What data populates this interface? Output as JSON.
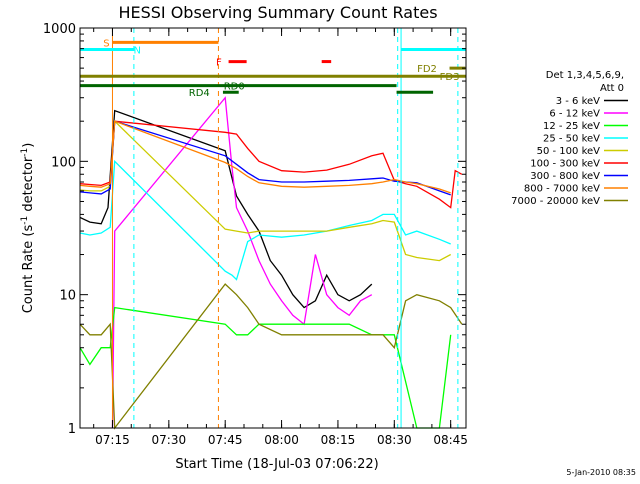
{
  "chart_data": {
    "type": "line",
    "title": "HESSI Observing Summary Count Rates",
    "xlabel": "Start Time (18-Jul-03 07:06:22)",
    "ylabel": "Count Rate (s",
    "ylabel_sup1": "-1",
    "ylabel_mid": " detector",
    "ylabel_sup2": "-1",
    "ylabel_end": ")",
    "yscale": "log",
    "xlim": [
      7.106,
      8.818
    ],
    "ylim": [
      1,
      1000
    ],
    "xticks": [
      {
        "label": "07:15",
        "t": 7.25
      },
      {
        "label": "07:30",
        "t": 7.5
      },
      {
        "label": "07:45",
        "t": 7.75
      },
      {
        "label": "08:00",
        "t": 8.0
      },
      {
        "label": "08:15",
        "t": 8.25
      },
      {
        "label": "08:30",
        "t": 8.5
      },
      {
        "label": "08:45",
        "t": 8.75
      }
    ],
    "yticks": [
      {
        "label": "1",
        "v": 1
      },
      {
        "label": "10",
        "v": 10
      },
      {
        "label": "100",
        "v": 100
      },
      {
        "label": "1000",
        "v": 1000
      }
    ],
    "legend": {
      "placement": "right",
      "header": [
        "Det 1,3,4,5,6,9,",
        "Att 0"
      ],
      "entries": [
        {
          "label": "3 - 6 keV",
          "color": "#000000"
        },
        {
          "label": "6 - 12 keV",
          "color": "#ff00ff"
        },
        {
          "label": "12 - 25 keV",
          "color": "#00ff00"
        },
        {
          "label": "25 - 50 keV",
          "color": "#00ffff"
        },
        {
          "label": "50 - 100 keV",
          "color": "#cccc00"
        },
        {
          "label": "100 - 300 keV",
          "color": "#ff0000"
        },
        {
          "label": "300 - 800 keV",
          "color": "#0000ff"
        },
        {
          "label": "800 - 7000 keV",
          "color": "#ff8000"
        },
        {
          "label": "7000 - 20000 keV",
          "color": "#808000"
        }
      ]
    },
    "flags": [
      {
        "label": "S",
        "color": "#ff8000",
        "y": 780,
        "segs": [
          [
            7.25,
            7.72
          ]
        ],
        "label_t": 7.223
      },
      {
        "label": "N",
        "color": "#00ffff",
        "y": 690,
        "segs": [
          [
            7.106,
            7.345
          ]
        ],
        "label_t": 7.36
      },
      {
        "label": "F",
        "color": "#ff0000",
        "y": 560,
        "segs": [
          [
            7.765,
            7.845
          ],
          [
            8.178,
            8.22
          ]
        ],
        "label_t": 7.722
      },
      {
        "label": "FD2",
        "color": "#808000",
        "y": 500,
        "segs": [
          [
            8.745,
            8.815
          ]
        ],
        "label_t": 8.645
      },
      {
        "label": "",
        "color": "#00ffff",
        "y": 690,
        "segs": [
          [
            8.53,
            8.818
          ]
        ],
        "label_t": 0
      },
      {
        "label": "FD3",
        "color": "#808000",
        "y": 435,
        "segs": [
          [
            7.106,
            8.818
          ]
        ],
        "label_t": 8.745
      },
      {
        "label": "RD0",
        "color": "#006400",
        "y": 370,
        "segs": [
          [
            7.106,
            8.51
          ]
        ],
        "label_t": 7.79
      },
      {
        "label": "RD4",
        "color": "#006400",
        "y": 330,
        "segs": [
          [
            7.74,
            7.81
          ],
          [
            8.51,
            8.672
          ]
        ],
        "label_t": 7.635
      }
    ],
    "vlines": [
      {
        "t": 7.25,
        "color": "#ff8000",
        "dash": false
      },
      {
        "t": 7.345,
        "color": "#00ffff",
        "dash": true
      },
      {
        "t": 7.72,
        "color": "#ff8000",
        "dash": true
      },
      {
        "t": 8.515,
        "color": "#00ffff",
        "dash": true
      },
      {
        "t": 8.53,
        "color": "#00ffff",
        "dash": false
      },
      {
        "t": 8.782,
        "color": "#00ffff",
        "dash": true
      }
    ],
    "series": [
      {
        "name": "3 - 6 keV",
        "color": "#000000",
        "x": [
          7.106,
          7.15,
          7.2,
          7.23,
          7.26,
          7.75,
          7.8,
          7.85,
          7.9,
          7.95,
          8.0,
          8.05,
          8.1,
          8.15,
          8.2,
          8.25,
          8.3,
          8.35,
          8.4
        ],
        "y": [
          38,
          35,
          34,
          45,
          240,
          120,
          55,
          40,
          30,
          18,
          14,
          10,
          8,
          9,
          14,
          10,
          9,
          10,
          12
        ]
      },
      {
        "name": "6 - 12 keV",
        "color": "#ff00ff",
        "x": [
          7.25,
          7.26,
          7.75,
          7.78,
          7.8,
          7.85,
          7.9,
          7.95,
          8.0,
          8.05,
          8.1,
          8.15,
          8.2,
          8.25,
          8.3,
          8.35,
          8.4
        ],
        "y": [
          1,
          30,
          300,
          90,
          45,
          30,
          18,
          12,
          9,
          7,
          6,
          20,
          10,
          8,
          7,
          9,
          10
        ]
      },
      {
        "name": "12 - 25 keV",
        "color": "#00ff00",
        "x": [
          7.106,
          7.15,
          7.2,
          7.24,
          7.26,
          7.75,
          7.8,
          7.85,
          7.9,
          8.0,
          8.1,
          8.2,
          8.3,
          8.4,
          8.5,
          8.6,
          8.7,
          8.75
        ],
        "y": [
          4,
          3,
          4,
          4,
          8,
          6,
          5,
          5,
          6,
          6,
          6,
          6,
          6,
          5,
          5,
          1,
          1,
          5
        ]
      },
      {
        "name": "25 - 50 keV",
        "color": "#00ffff",
        "x": [
          7.106,
          7.15,
          7.2,
          7.24,
          7.26,
          7.75,
          7.78,
          7.8,
          7.85,
          7.9,
          8.0,
          8.1,
          8.2,
          8.3,
          8.4,
          8.45,
          8.5,
          8.55,
          8.6,
          8.7,
          8.75
        ],
        "y": [
          29,
          28,
          29,
          32,
          100,
          15,
          14,
          13,
          25,
          28,
          27,
          28,
          30,
          33,
          36,
          40,
          40,
          28,
          30,
          26,
          24
        ]
      },
      {
        "name": "50 - 100 keV",
        "color": "#cccc00",
        "x": [
          7.106,
          7.15,
          7.2,
          7.24,
          7.26,
          7.75,
          7.8,
          7.85,
          7.9,
          8.0,
          8.1,
          8.2,
          8.3,
          8.4,
          8.45,
          8.5,
          8.55,
          8.6,
          8.7,
          8.75
        ],
        "y": [
          61,
          60,
          60,
          65,
          200,
          31,
          30,
          29,
          30,
          30,
          30,
          30,
          32,
          34,
          36,
          35,
          20,
          19,
          18,
          20
        ]
      },
      {
        "name": "100 - 300 keV",
        "color": "#ff0000",
        "x": [
          7.106,
          7.15,
          7.2,
          7.24,
          7.26,
          7.75,
          7.8,
          7.85,
          7.9,
          8.0,
          8.1,
          8.2,
          8.3,
          8.4,
          8.45,
          8.5,
          8.55,
          8.6,
          8.7,
          8.75,
          8.77,
          8.8
        ],
        "y": [
          68,
          67,
          66,
          70,
          200,
          165,
          160,
          125,
          100,
          85,
          83,
          86,
          95,
          110,
          115,
          72,
          68,
          65,
          52,
          45,
          85,
          80
        ]
      },
      {
        "name": "300 - 800 keV",
        "color": "#0000ff",
        "x": [
          7.106,
          7.15,
          7.2,
          7.24,
          7.26,
          7.75,
          7.8,
          7.85,
          7.9,
          8.0,
          8.1,
          8.2,
          8.3,
          8.4,
          8.45,
          8.5,
          8.55,
          8.6,
          8.7,
          8.75
        ],
        "y": [
          59,
          58,
          57,
          62,
          200,
          110,
          95,
          82,
          73,
          70,
          70,
          71,
          72,
          74,
          75,
          71,
          70,
          69,
          60,
          56
        ]
      },
      {
        "name": "800 - 7000 keV",
        "color": "#ff8000",
        "x": [
          7.106,
          7.15,
          7.2,
          7.24,
          7.26,
          7.75,
          7.8,
          7.85,
          7.9,
          8.0,
          8.1,
          8.2,
          8.3,
          8.4,
          8.45,
          8.5,
          8.55,
          8.6,
          8.7,
          8.75
        ],
        "y": [
          66,
          65,
          64,
          68,
          200,
          98,
          88,
          77,
          69,
          65,
          64,
          65,
          66,
          68,
          70,
          73,
          70,
          68,
          62,
          58
        ]
      },
      {
        "name": "7000 - 20000 keV",
        "color": "#808000",
        "x": [
          7.106,
          7.15,
          7.2,
          7.24,
          7.26,
          7.75,
          7.8,
          7.85,
          7.9,
          8.0,
          8.1,
          8.2,
          8.3,
          8.4,
          8.45,
          8.5,
          8.55,
          8.6,
          8.7,
          8.75,
          8.8
        ],
        "y": [
          6,
          5,
          5,
          6,
          1,
          12,
          10,
          8,
          6,
          5,
          5,
          5,
          5,
          5,
          5,
          4,
          9,
          10,
          9,
          8,
          6
        ]
      }
    ]
  },
  "footer": {
    "date_stamp": "5-Jan-2010 08:35"
  }
}
